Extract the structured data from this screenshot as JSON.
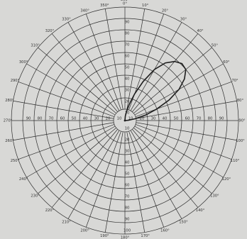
{
  "chart_data": {
    "type": "line",
    "subtype": "polar",
    "title": "",
    "theta_unit": "degrees",
    "theta_zero": "top",
    "theta_direction": "clockwise",
    "angle_ticks": [
      "0°",
      "10°",
      "20°",
      "30°",
      "40°",
      "50°",
      "60°",
      "70°",
      "80°",
      "90°",
      "100°",
      "110°",
      "120°",
      "130°",
      "140°",
      "150°",
      "160°",
      "170°",
      "180°",
      "190°",
      "200°",
      "210°",
      "220°",
      "230°",
      "240°",
      "250°",
      "260°",
      "270°",
      "280°",
      "290°",
      "300°",
      "310°",
      "320°",
      "330°",
      "340°",
      "350°"
    ],
    "top_label": "360°",
    "radial_axis": {
      "rmax": 100,
      "ticks_upper": [
        "10",
        "20",
        "30",
        "40",
        "50",
        "60",
        "70",
        "80",
        "90"
      ],
      "ticks_lower": [
        "10",
        "20",
        "30",
        "40",
        "50",
        "60",
        "70",
        "80",
        "90",
        "100"
      ],
      "ticks_left": [
        "10",
        "20",
        "30",
        "40",
        "50",
        "60",
        "70",
        "80",
        "90"
      ],
      "ticks_right": [
        "10",
        "20",
        "30",
        "40",
        "50",
        "60",
        "70",
        "80",
        "90"
      ]
    },
    "grid": true,
    "series": [
      {
        "theta": [
          0,
          5,
          10,
          15,
          20,
          25,
          30,
          35,
          40,
          45,
          50,
          55,
          60,
          65,
          70,
          75,
          80,
          85,
          90
        ],
        "r": [
          0,
          4,
          8,
          15,
          25,
          38,
          52,
          62,
          68,
          71,
          70,
          64,
          55,
          43,
          30,
          19,
          9,
          3,
          0
        ]
      }
    ]
  }
}
